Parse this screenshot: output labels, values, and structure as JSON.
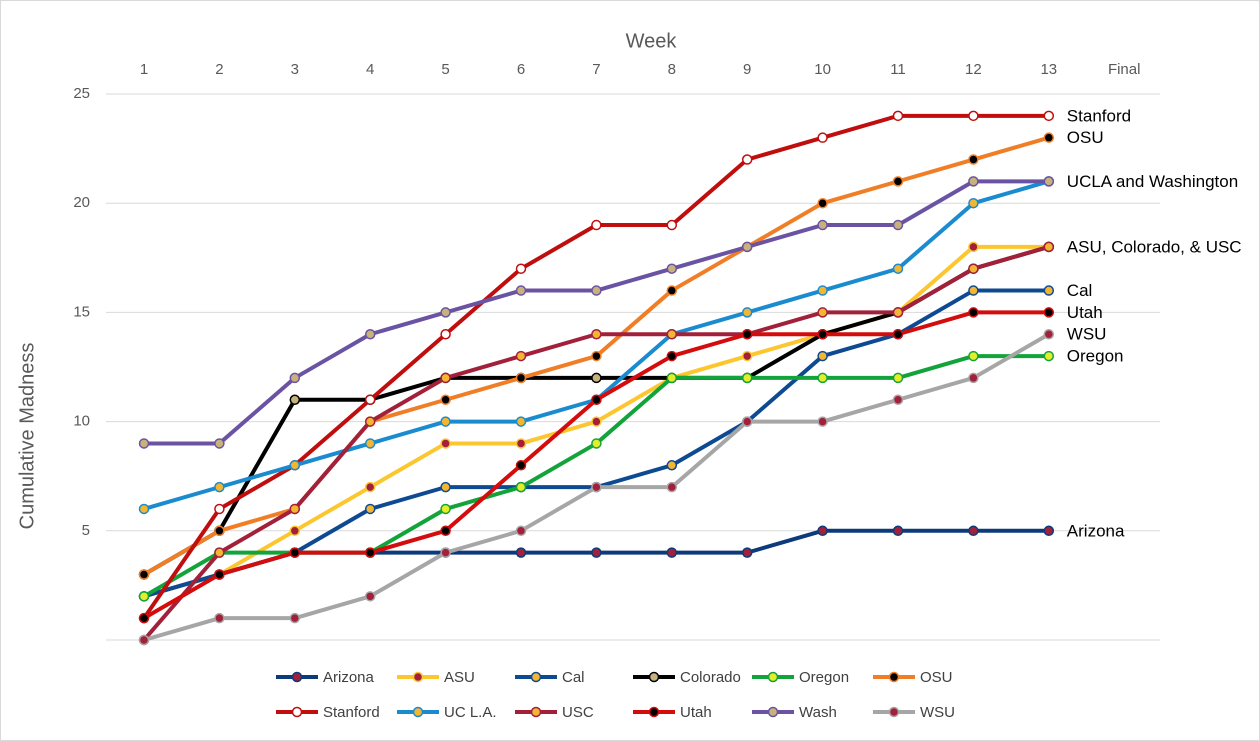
{
  "chart_data": {
    "type": "line",
    "x_label": "Week",
    "y_label": "Cumulative Madness",
    "categories": [
      "1",
      "2",
      "3",
      "4",
      "5",
      "6",
      "7",
      "8",
      "9",
      "10",
      "11",
      "12",
      "13",
      "Final"
    ],
    "ylim": [
      0,
      25
    ],
    "yticks": [
      5,
      10,
      15,
      20,
      25
    ],
    "grid": true,
    "legend": "bottom",
    "series": [
      {
        "name": "Arizona",
        "color": "#0d3a7a",
        "marker_color": "#a3203a",
        "label": "Arizona",
        "values": [
          2,
          3,
          4,
          4,
          4,
          4,
          4,
          4,
          4,
          5,
          5,
          5,
          5,
          null
        ]
      },
      {
        "name": "ASU",
        "color": "#fcc72e",
        "marker_color": "#a3203a",
        "values": [
          2,
          3,
          5,
          7,
          9,
          9,
          10,
          12,
          13,
          14,
          15,
          18,
          18,
          null
        ]
      },
      {
        "name": "Cal",
        "color": "#0e4a92",
        "marker_color": "#f2b632",
        "label": "Cal",
        "values": [
          2,
          3,
          4,
          6,
          7,
          7,
          7,
          8,
          10,
          13,
          14,
          16,
          16,
          null
        ]
      },
      {
        "name": "Colorado",
        "color": "#000000",
        "marker_color": "#c8b27c",
        "values": [
          3,
          5,
          11,
          11,
          12,
          12,
          12,
          12,
          12,
          14,
          15,
          17,
          18,
          null
        ]
      },
      {
        "name": "Oregon",
        "color": "#12a33a",
        "marker_color": "#e5ec2a",
        "label": "Oregon",
        "values": [
          2,
          4,
          4,
          4,
          6,
          7,
          9,
          12,
          12,
          12,
          12,
          13,
          13,
          null
        ]
      },
      {
        "name": "OSU",
        "color": "#f07e26",
        "marker_color": "#000000",
        "label": "OSU",
        "values": [
          3,
          5,
          6,
          10,
          11,
          12,
          13,
          16,
          18,
          20,
          21,
          22,
          23,
          null
        ]
      },
      {
        "name": "Stanford",
        "color": "#c00d0d",
        "marker_color": "#ffffff",
        "label": "Stanford",
        "values": [
          1,
          6,
          8,
          11,
          14,
          17,
          19,
          19,
          22,
          23,
          24,
          24,
          24,
          null
        ]
      },
      {
        "name": "UC L.A.",
        "color": "#1b8bd0",
        "marker_color": "#f2b632",
        "values": [
          6,
          7,
          8,
          9,
          10,
          10,
          11,
          14,
          15,
          16,
          17,
          20,
          21,
          null
        ]
      },
      {
        "name": "USC",
        "color": "#a3203a",
        "marker_color": "#f2b632",
        "label": "ASU, Colorado, & USC",
        "values": [
          0,
          4,
          6,
          10,
          12,
          13,
          14,
          14,
          14,
          15,
          15,
          17,
          18,
          null
        ]
      },
      {
        "name": "Utah",
        "color": "#d40c0c",
        "marker_color": "#000000",
        "label": "Utah",
        "values": [
          1,
          3,
          4,
          4,
          5,
          8,
          11,
          13,
          14,
          14,
          14,
          15,
          15,
          null
        ]
      },
      {
        "name": "Wash",
        "color": "#6b53a3",
        "marker_color": "#c8b27c",
        "label": "UCLA and Washington",
        "values": [
          9,
          9,
          12,
          14,
          15,
          16,
          16,
          17,
          18,
          19,
          19,
          21,
          21,
          null
        ]
      },
      {
        "name": "WSU",
        "color": "#a6a6a6",
        "marker_color": "#a3203a",
        "label": "WSU",
        "values": [
          0,
          1,
          1,
          2,
          4,
          5,
          7,
          7,
          10,
          10,
          11,
          12,
          14,
          null
        ]
      }
    ]
  }
}
